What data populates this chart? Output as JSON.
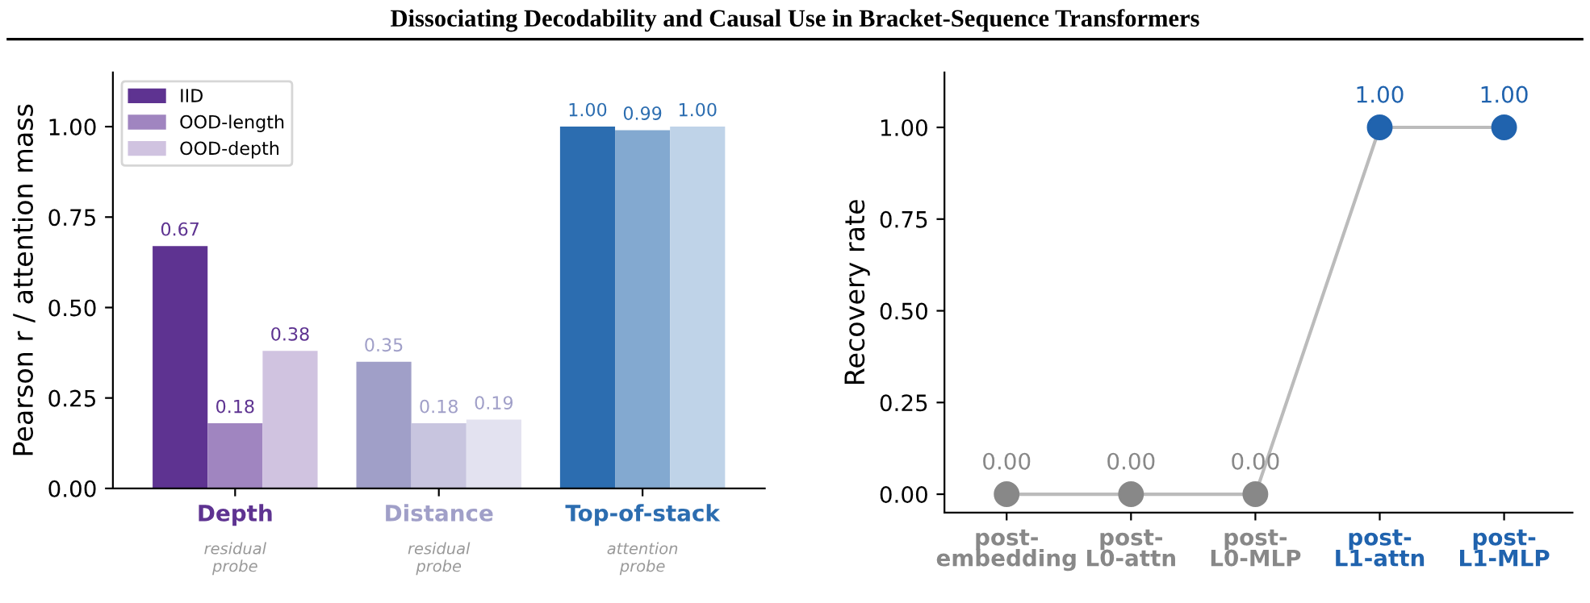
{
  "chart_data": [
    {
      "type": "bar",
      "title": "Dissociating Decodability and Causal Use in Bracket-Sequence Transformers",
      "ylabel": "Pearson r / attention mass",
      "categories": [
        "Depth",
        "Distance",
        "Top-of-stack"
      ],
      "series": [
        {
          "name": "IID",
          "color": "#5e3391",
          "colors": [
            "#5e3391",
            "#a09fc8",
            "#2c6db0"
          ],
          "values": [
            0.67,
            0.35,
            1.0
          ],
          "value_labels": [
            "0.67",
            "0.35",
            "1.00"
          ]
        },
        {
          "name": "OOD-length",
          "color": "#a085c0",
          "colors": [
            "#a085c0",
            "#c8c5df",
            "#83a9d0"
          ],
          "values": [
            0.18,
            0.18,
            0.99
          ],
          "value_labels": [
            "0.18",
            "0.18",
            "0.99"
          ]
        },
        {
          "name": "OOD-depth",
          "color": "#d0c3e0",
          "colors": [
            "#d0c3e0",
            "#e3e2f0",
            "#bfd3e8"
          ],
          "values": [
            0.38,
            0.19,
            1.0
          ],
          "value_labels": [
            "0.38",
            "0.19",
            "1.00"
          ]
        }
      ],
      "annotations": [
        "residual\nprobe",
        "residual\nprobe",
        "attention\nprobe"
      ],
      "ylim": [
        0,
        1.15
      ],
      "yticks": [
        {
          "value": 0,
          "label": "0.00"
        },
        {
          "value": 0.25,
          "label": "0.25"
        },
        {
          "value": 0.5,
          "label": "0.50"
        },
        {
          "value": 0.75,
          "label": "0.75"
        },
        {
          "value": 1,
          "label": "1.00"
        }
      ],
      "legend": "top left",
      "grid": false
    },
    {
      "type": "line",
      "ylabel": "Recovery rate",
      "categories": [
        "post-\nembedding",
        "post-\nL0-attn",
        "post-\nL0-MLP",
        "post-\nL1-attn",
        "post-\nL1-MLP"
      ],
      "series": [
        {
          "color": "#bbbbbb",
          "colors": [
            "#888888",
            "#888888",
            "#888888",
            "#2063ae",
            "#2063ae"
          ],
          "values": [
            0,
            0,
            0,
            1,
            1
          ],
          "value_labels": [
            "0.00",
            "0.00",
            "0.00",
            "1.00",
            "1.00"
          ]
        }
      ],
      "ylim": [
        -0.05,
        1.15
      ],
      "yticks": [
        {
          "value": 0,
          "label": "0.00"
        },
        {
          "value": 0.25,
          "label": "0.25"
        },
        {
          "value": 0.5,
          "label": "0.50"
        },
        {
          "value": 0.75,
          "label": "0.75"
        },
        {
          "value": 1,
          "label": "1.00"
        }
      ],
      "marker": "circle",
      "line_style": "solid",
      "grid": false
    }
  ]
}
